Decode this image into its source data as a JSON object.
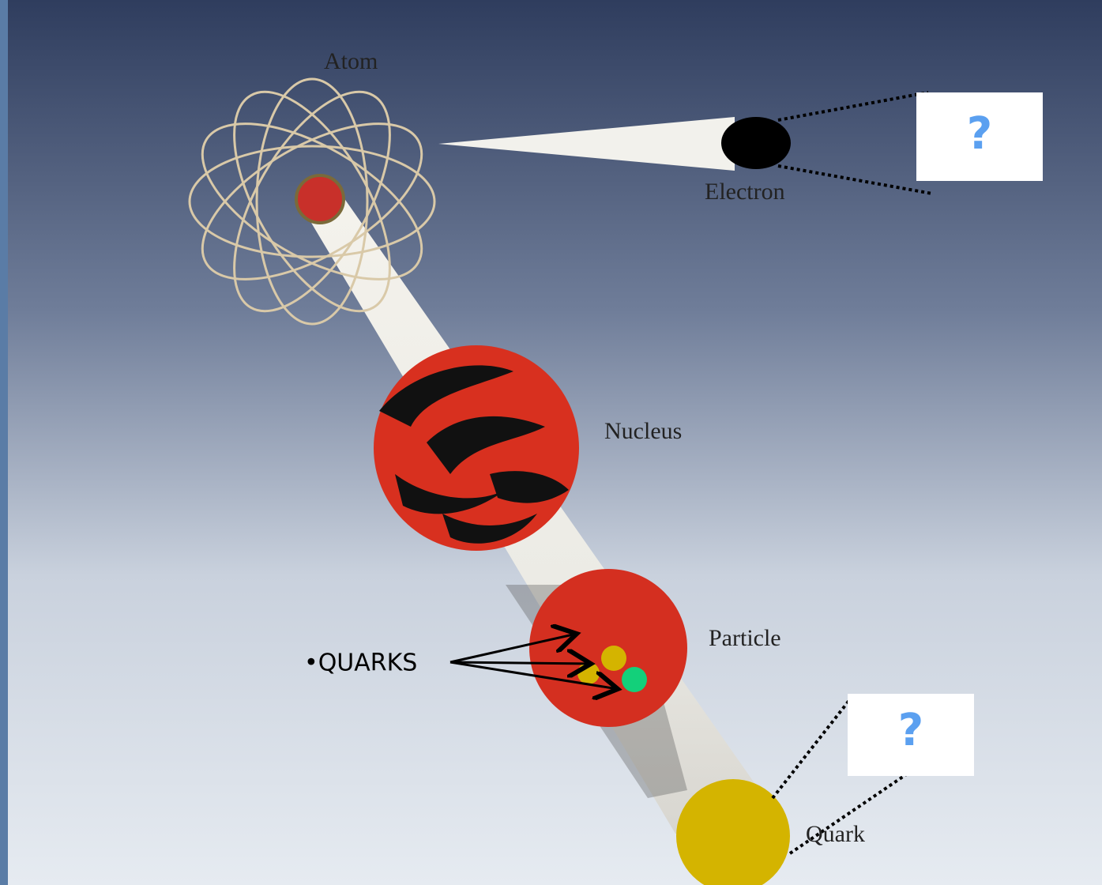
{
  "labels": {
    "atom": "Atom",
    "electron": "Electron",
    "nucleus": "Nucleus",
    "particle": "Particle",
    "quark": "Quark"
  },
  "callouts": [
    "?",
    "?"
  ],
  "annotation": "•QUARKS"
}
